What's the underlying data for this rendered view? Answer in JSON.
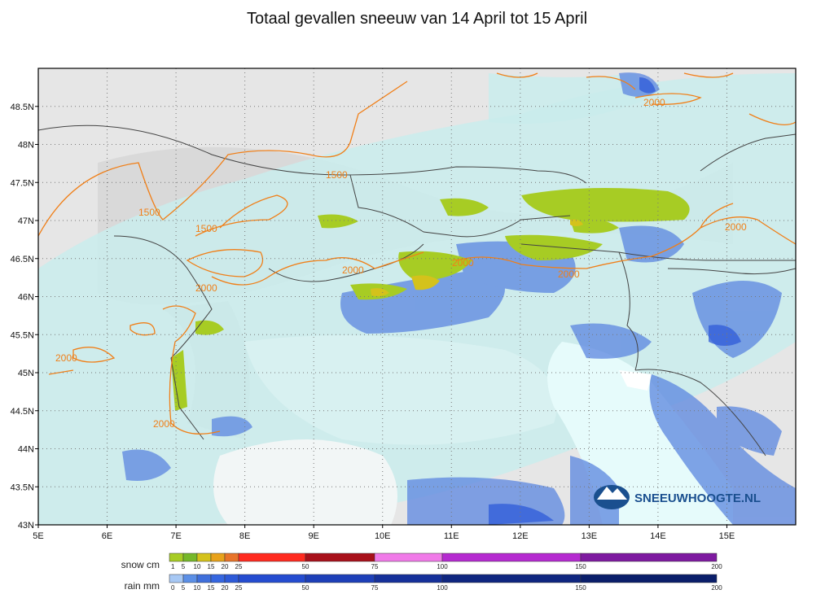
{
  "title": "Totaal gevallen sneeuw van 14 April tot 15 April",
  "map": {
    "lon_range": [
      5,
      16
    ],
    "lat_range": [
      43,
      49
    ],
    "lon_ticks": [
      "5E",
      "6E",
      "7E",
      "8E",
      "9E",
      "10E",
      "11E",
      "12E",
      "13E",
      "14E",
      "15E"
    ],
    "lat_ticks": [
      "43N",
      "43.5N",
      "44N",
      "44.5N",
      "45N",
      "45.5N",
      "46N",
      "46.5N",
      "47N",
      "47.5N",
      "48N",
      "48.5N"
    ],
    "contour_labels": [
      "1500",
      "1500",
      "1500",
      "2000",
      "2000",
      "2000",
      "2000",
      "2000",
      "2000",
      "2000",
      "2000"
    ],
    "colors": {
      "contour": "#f07f18",
      "land": "#e4e4e4",
      "rain_light": "#c8ecec",
      "rain_blue": "#5b86e0",
      "snow_green": "#a7cc24",
      "sea": "#ffffff"
    }
  },
  "logo": {
    "text": "SNEEUWHOOGTE.NL",
    "icon": "mountain-globe-icon"
  },
  "legend": {
    "snow": {
      "label": "snow cm",
      "ticks": [
        "1",
        "5",
        "10",
        "15",
        "20",
        "25",
        "50",
        "75",
        "100",
        "150",
        "200"
      ],
      "colors": [
        "#a7cc24",
        "#76b82a",
        "#d4c21b",
        "#e8a21b",
        "#e8742a",
        "#ff2a1f",
        "#a8101a",
        "#f07ae8",
        "#b52ad0",
        "#7e1aa0"
      ]
    },
    "rain": {
      "label": "rain mm",
      "ticks": [
        "0",
        "5",
        "10",
        "15",
        "20",
        "25",
        "50",
        "75",
        "100",
        "150",
        "200"
      ],
      "colors": [
        "#a7c8f4",
        "#5b8fe6",
        "#3f6fdb",
        "#3566e0",
        "#2d5ad8",
        "#244cd0",
        "#1d3fb8",
        "#15309a",
        "#0f2680",
        "#0a1e6a"
      ]
    }
  }
}
